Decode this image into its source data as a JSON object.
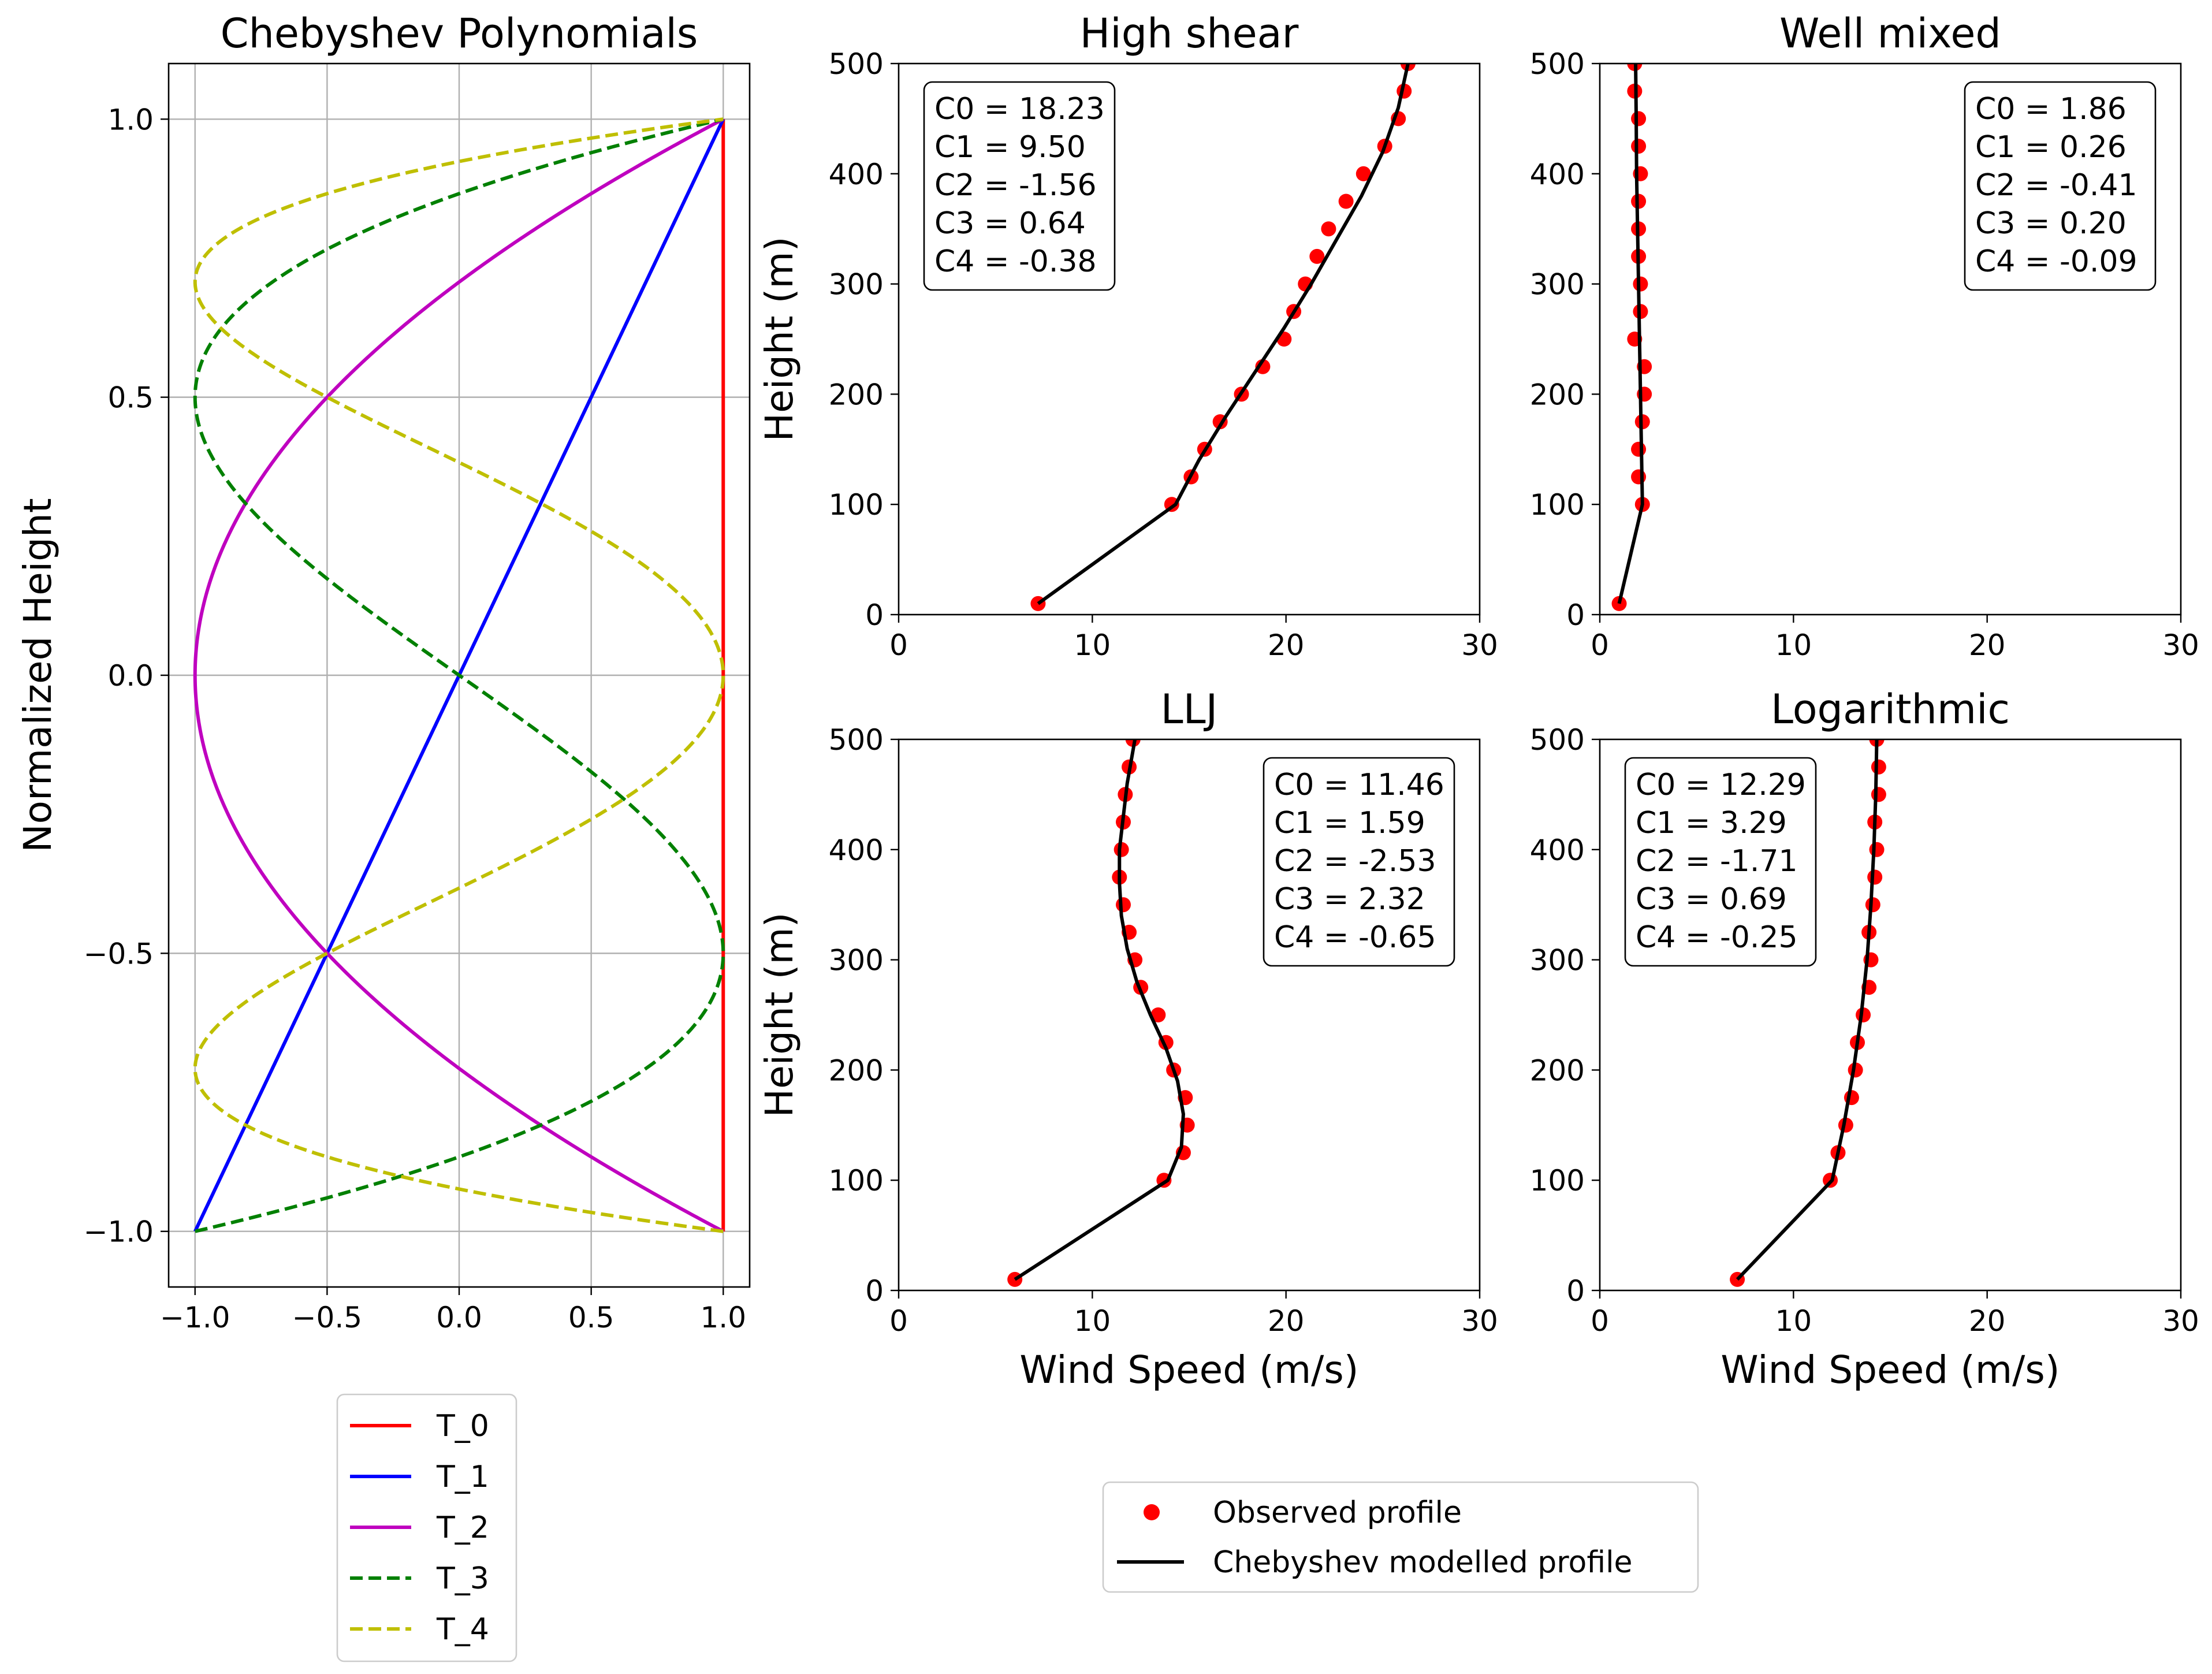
{
  "chart_data": [
    {
      "id": "chebyshev",
      "type": "line",
      "title": "Chebyshev Polynomials",
      "xlabel": "",
      "ylabel": "Normalized Height",
      "xlim": [
        -1.1,
        1.1
      ],
      "ylim": [
        -1.1,
        1.1
      ],
      "xticks": [
        -1.0,
        -0.5,
        0.0,
        0.5,
        1.0
      ],
      "yticks": [
        -1.0,
        -0.5,
        0.0,
        0.5,
        1.0
      ],
      "grid": true,
      "legend_placement": "below",
      "series": [
        {
          "name": "T_0",
          "order": 0,
          "color": "#ff0000",
          "dash": "solid"
        },
        {
          "name": "T_1",
          "order": 1,
          "color": "#0000ff",
          "dash": "solid"
        },
        {
          "name": "T_2",
          "order": 2,
          "color": "#bf00bf",
          "dash": "solid"
        },
        {
          "name": "T_3",
          "order": 3,
          "color": "#008000",
          "dash": "dashed"
        },
        {
          "name": "T_4",
          "order": 4,
          "color": "#bfbf00",
          "dash": "dashed"
        }
      ],
      "note_function": "x = T_n(y) for y in [-1, 1]"
    },
    {
      "id": "high-shear",
      "type": "scatter",
      "title": "High shear",
      "xlabel": "",
      "ylabel": "Height (m)",
      "xlim": [
        0,
        30
      ],
      "ylim": [
        0,
        500
      ],
      "xticks": [
        0,
        10,
        20,
        30
      ],
      "yticks": [
        0,
        100,
        200,
        300,
        400,
        500
      ],
      "grid": false,
      "coefficients": [
        "C0 = 18.23",
        "C1 = 9.50",
        "C2 = -1.56",
        "C3 = 0.64",
        "C4 = -0.38"
      ],
      "coef_box_position": "top-left",
      "observed": [
        [
          7.2,
          10
        ],
        [
          14.1,
          100
        ],
        [
          15.1,
          125
        ],
        [
          15.8,
          150
        ],
        [
          16.6,
          175
        ],
        [
          17.7,
          200
        ],
        [
          18.8,
          225
        ],
        [
          19.9,
          250
        ],
        [
          20.4,
          275
        ],
        [
          21.0,
          300
        ],
        [
          21.6,
          325
        ],
        [
          22.2,
          350
        ],
        [
          23.1,
          375
        ],
        [
          24.0,
          400
        ],
        [
          25.1,
          425
        ],
        [
          25.8,
          450
        ],
        [
          26.1,
          475
        ],
        [
          26.3,
          500
        ]
      ],
      "model": [
        [
          7.2,
          10
        ],
        [
          14.3,
          100
        ],
        [
          15.5,
          140
        ],
        [
          16.9,
          180
        ],
        [
          18.4,
          220
        ],
        [
          19.9,
          260
        ],
        [
          21.3,
          300
        ],
        [
          22.6,
          340
        ],
        [
          23.9,
          380
        ],
        [
          25.0,
          420
        ],
        [
          25.8,
          460
        ],
        [
          26.3,
          500
        ]
      ]
    },
    {
      "id": "well-mixed",
      "type": "scatter",
      "title": "Well mixed",
      "xlabel": "",
      "ylabel": "",
      "xlim": [
        0,
        30
      ],
      "ylim": [
        0,
        500
      ],
      "xticks": [
        0,
        10,
        20,
        30
      ],
      "yticks": [
        0,
        100,
        200,
        300,
        400,
        500
      ],
      "grid": false,
      "coefficients": [
        "C0 = 1.86",
        "C1 = 0.26",
        "C2 = -0.41",
        "C3 = 0.20",
        "C4 = -0.09"
      ],
      "coef_box_position": "top-right",
      "observed": [
        [
          1.0,
          10
        ],
        [
          2.2,
          100
        ],
        [
          2.0,
          125
        ],
        [
          2.0,
          150
        ],
        [
          2.2,
          175
        ],
        [
          2.3,
          200
        ],
        [
          2.3,
          225
        ],
        [
          1.8,
          250
        ],
        [
          2.1,
          275
        ],
        [
          2.1,
          300
        ],
        [
          2.0,
          325
        ],
        [
          2.0,
          350
        ],
        [
          2.0,
          375
        ],
        [
          2.1,
          400
        ],
        [
          2.0,
          425
        ],
        [
          2.0,
          450
        ],
        [
          1.8,
          475
        ],
        [
          1.8,
          500
        ]
      ],
      "model": [
        [
          1.0,
          10
        ],
        [
          2.2,
          100
        ],
        [
          2.15,
          150
        ],
        [
          2.1,
          200
        ],
        [
          2.05,
          250
        ],
        [
          2.0,
          300
        ],
        [
          1.95,
          350
        ],
        [
          1.9,
          400
        ],
        [
          1.88,
          450
        ],
        [
          1.85,
          500
        ]
      ]
    },
    {
      "id": "llj",
      "type": "scatter",
      "title": "LLJ",
      "xlabel": "Wind Speed (m/s)",
      "ylabel": "Height (m)",
      "xlim": [
        0,
        30
      ],
      "ylim": [
        0,
        500
      ],
      "xticks": [
        0,
        10,
        20,
        30
      ],
      "yticks": [
        0,
        100,
        200,
        300,
        400,
        500
      ],
      "grid": false,
      "coefficients": [
        "C0 = 11.46",
        "C1 = 1.59",
        "C2 = -2.53",
        "C3 = 2.32",
        "C4 = -0.65"
      ],
      "coef_box_position": "top-right",
      "observed": [
        [
          6.0,
          10
        ],
        [
          13.7,
          100
        ],
        [
          14.7,
          125
        ],
        [
          14.9,
          150
        ],
        [
          14.8,
          175
        ],
        [
          14.2,
          200
        ],
        [
          13.8,
          225
        ],
        [
          13.4,
          250
        ],
        [
          12.5,
          275
        ],
        [
          12.2,
          300
        ],
        [
          11.9,
          325
        ],
        [
          11.6,
          350
        ],
        [
          11.4,
          375
        ],
        [
          11.5,
          400
        ],
        [
          11.6,
          425
        ],
        [
          11.7,
          450
        ],
        [
          11.9,
          475
        ],
        [
          12.1,
          500
        ]
      ],
      "model": [
        [
          6.0,
          10
        ],
        [
          13.9,
          100
        ],
        [
          14.6,
          130
        ],
        [
          14.7,
          160
        ],
        [
          14.4,
          190
        ],
        [
          13.8,
          220
        ],
        [
          13.0,
          250
        ],
        [
          12.3,
          280
        ],
        [
          11.8,
          310
        ],
        [
          11.5,
          340
        ],
        [
          11.4,
          370
        ],
        [
          11.4,
          400
        ],
        [
          11.6,
          430
        ],
        [
          11.8,
          460
        ],
        [
          12.2,
          500
        ]
      ]
    },
    {
      "id": "logarithmic",
      "type": "scatter",
      "title": "Logarithmic",
      "xlabel": "Wind Speed (m/s)",
      "ylabel": "",
      "xlim": [
        0,
        30
      ],
      "ylim": [
        0,
        500
      ],
      "xticks": [
        0,
        10,
        20,
        30
      ],
      "yticks": [
        0,
        100,
        200,
        300,
        400,
        500
      ],
      "grid": false,
      "coefficients": [
        "C0 = 12.29",
        "C1 = 3.29",
        "C2 = -1.71",
        "C3 = 0.69",
        "C4 = -0.25"
      ],
      "coef_box_position": "top-left",
      "observed": [
        [
          7.1,
          10
        ],
        [
          11.9,
          100
        ],
        [
          12.3,
          125
        ],
        [
          12.7,
          150
        ],
        [
          13.0,
          175
        ],
        [
          13.2,
          200
        ],
        [
          13.3,
          225
        ],
        [
          13.6,
          250
        ],
        [
          13.9,
          275
        ],
        [
          14.0,
          300
        ],
        [
          13.9,
          325
        ],
        [
          14.1,
          350
        ],
        [
          14.2,
          375
        ],
        [
          14.3,
          400
        ],
        [
          14.2,
          425
        ],
        [
          14.4,
          450
        ],
        [
          14.4,
          475
        ],
        [
          14.3,
          500
        ]
      ],
      "model": [
        [
          7.1,
          10
        ],
        [
          12.0,
          100
        ],
        [
          12.6,
          150
        ],
        [
          13.1,
          200
        ],
        [
          13.5,
          250
        ],
        [
          13.8,
          300
        ],
        [
          14.0,
          350
        ],
        [
          14.15,
          400
        ],
        [
          14.25,
          450
        ],
        [
          14.3,
          500
        ]
      ]
    }
  ],
  "legend_profiles": {
    "observed_label": "Observed profile",
    "model_label": "Chebyshev modelled profile",
    "observed_color": "#ff0000",
    "model_color": "#000000"
  }
}
